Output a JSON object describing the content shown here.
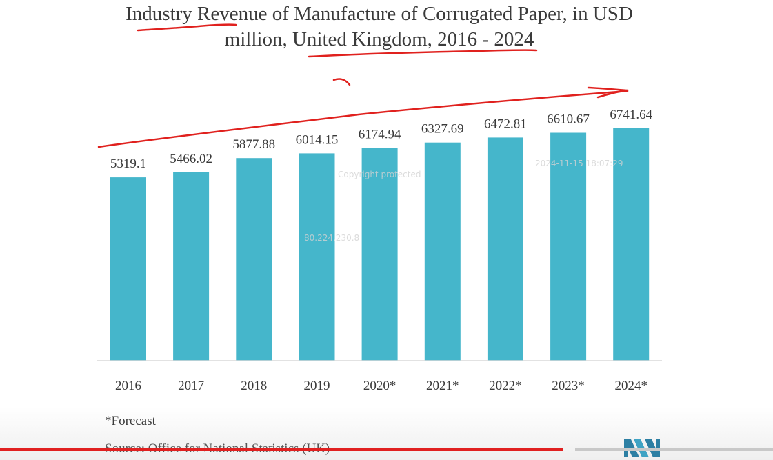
{
  "title_line1": "Industry Revenue of Manufacture of Corrugated Paper, in USD",
  "title_line2": "million, United Kingdom, 2016 - 2024",
  "footnote": "*Forecast",
  "source": "Source: Office for National Statistics (UK)",
  "watermarks": {
    "copyright": "Copyright protected",
    "ip": "80.224.230.8",
    "timestamp": "2024-11-15 18:07:29"
  },
  "video_progress": 0.728,
  "colors": {
    "bar": "#45b6cb",
    "annotation": "#e0211e",
    "progress": "#e02020"
  },
  "logo_icon": "brand-logo-icon",
  "chart_data": {
    "type": "bar",
    "title": "Industry Revenue of Manufacture of Corrugated Paper, in USD million, United Kingdom, 2016 - 2024",
    "categories": [
      "2016",
      "2017",
      "2018",
      "2019",
      "2020*",
      "2021*",
      "2022*",
      "2023*",
      "2024*"
    ],
    "values": [
      5319.1,
      5466.02,
      5877.88,
      6014.15,
      6174.94,
      6327.69,
      6472.81,
      6610.67,
      6741.64
    ],
    "value_labels": [
      "5319.1",
      "5466.02",
      "5877.88",
      "6014.15",
      "6174.94",
      "6327.69",
      "6472.81",
      "6610.67",
      "6741.64"
    ],
    "xlabel": "",
    "ylabel": "",
    "ylim": [
      0,
      7000
    ],
    "grid": false,
    "legend": "none"
  }
}
